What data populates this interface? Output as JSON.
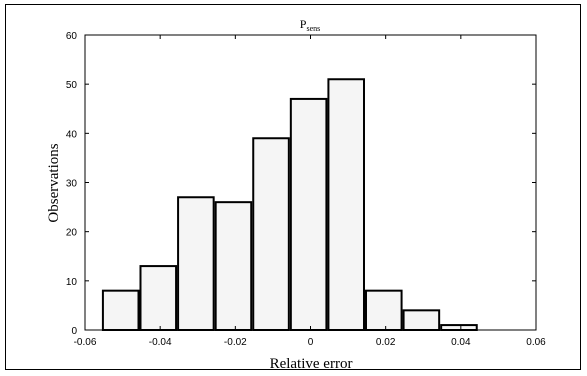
{
  "chart_data": {
    "type": "bar",
    "title": "P",
    "title_subscript": "sens",
    "xlabel": "Relative error",
    "ylabel": "Observations",
    "xlim": [
      -0.06,
      0.06
    ],
    "ylim": [
      0,
      60
    ],
    "xticks": [
      -0.06,
      -0.04,
      -0.02,
      0,
      0.02,
      0.04,
      0.06
    ],
    "xtick_labels": [
      "-0.06",
      "-0.04",
      "-0.02",
      "0",
      "0.02",
      "0.04",
      "0.06"
    ],
    "yticks": [
      0,
      10,
      20,
      30,
      40,
      50,
      60
    ],
    "ytick_labels": [
      "0",
      "10",
      "20",
      "30",
      "40",
      "50",
      "60"
    ],
    "bins": [
      {
        "x0": -0.0555,
        "x1": -0.0455,
        "value": 8
      },
      {
        "x0": -0.0455,
        "x1": -0.0355,
        "value": 13
      },
      {
        "x0": -0.0355,
        "x1": -0.0255,
        "value": 27
      },
      {
        "x0": -0.0255,
        "x1": -0.0155,
        "value": 26
      },
      {
        "x0": -0.0155,
        "x1": -0.0055,
        "value": 39
      },
      {
        "x0": -0.0055,
        "x1": 0.0045,
        "value": 47
      },
      {
        "x0": 0.0045,
        "x1": 0.0145,
        "value": 51
      },
      {
        "x0": 0.0145,
        "x1": 0.0245,
        "value": 8
      },
      {
        "x0": 0.0245,
        "x1": 0.0345,
        "value": 4
      },
      {
        "x0": 0.0345,
        "x1": 0.0445,
        "value": 1
      }
    ],
    "grid": false,
    "colors": {
      "bar_fill": "#f5f5f5",
      "bar_stroke": "#000000",
      "axis": "#000000",
      "background": "#ffffff"
    }
  }
}
